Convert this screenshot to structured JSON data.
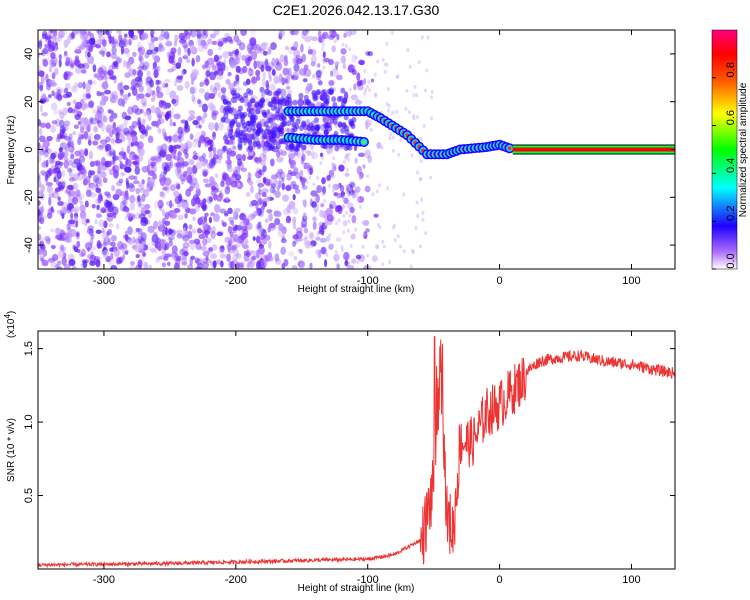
{
  "title": "C2E1.2026.042.13.17.G30",
  "chart_data": [
    {
      "type": "heatmap",
      "xlabel": "Height of straight line (km)",
      "ylabel": "Frequency (Hz)",
      "xlim": [
        -350,
        133
      ],
      "ylim": [
        -50,
        50
      ],
      "xticks": [
        -300,
        -200,
        -100,
        0,
        100
      ],
      "yticks": [
        -40,
        -20,
        0,
        20,
        40
      ],
      "colorbar": {
        "label": "Normalized spectral amplitude",
        "range": [
          0.0,
          1.0
        ],
        "ticks": [
          "0.0",
          "0.2",
          "0.4",
          "0.6",
          "0.8"
        ],
        "colors": [
          "#ffffff",
          "#b070ff",
          "#2000ff",
          "#00ffff",
          "#00ff00",
          "#ffff00",
          "#ff6000",
          "#ff0000",
          "#ff0080"
        ]
      },
      "features": {
        "noise_region_x": [
          -350,
          -140
        ],
        "upper_track": [
          [
            -160,
            16
          ],
          [
            -140,
            16
          ],
          [
            -120,
            16
          ],
          [
            -100,
            16
          ],
          [
            -90,
            13
          ],
          [
            -70,
            6
          ],
          [
            -55,
            -2
          ],
          [
            -40,
            -2
          ],
          [
            -30,
            0
          ],
          [
            -10,
            1
          ],
          [
            0,
            2
          ],
          [
            10,
            0
          ]
        ],
        "lower_track": [
          [
            -160,
            5
          ],
          [
            -140,
            4
          ],
          [
            -120,
            4
          ],
          [
            -100,
            3
          ]
        ],
        "steady_line": [
          [
            10,
            0
          ],
          [
            133,
            0
          ]
        ]
      }
    },
    {
      "type": "line",
      "xlabel": "Height of straight line (km)",
      "ylabel": "SNR (10 * v/v)",
      "yscale_label": "(x10",
      "yscale_exp": "4",
      "xlim": [
        -350,
        133
      ],
      "ylim": [
        0,
        1.62
      ],
      "xticks": [
        -300,
        -200,
        -100,
        0,
        100
      ],
      "yticks": [
        "0.5",
        "1.0",
        "1.5"
      ],
      "series_color": "#ee3333",
      "envelope": [
        [
          -350,
          0.03
        ],
        [
          -250,
          0.04
        ],
        [
          -150,
          0.06
        ],
        [
          -100,
          0.07
        ],
        [
          -80,
          0.1
        ],
        [
          -60,
          0.2
        ],
        [
          -50,
          0.6
        ],
        [
          -45,
          1.6
        ],
        [
          -40,
          0.4
        ],
        [
          -35,
          0.3
        ],
        [
          -30,
          0.9
        ],
        [
          -20,
          0.9
        ],
        [
          -10,
          1.1
        ],
        [
          0,
          1.15
        ],
        [
          10,
          1.25
        ],
        [
          20,
          1.35
        ],
        [
          30,
          1.42
        ],
        [
          40,
          1.44
        ],
        [
          60,
          1.46
        ],
        [
          80,
          1.42
        ],
        [
          100,
          1.4
        ],
        [
          120,
          1.36
        ],
        [
          133,
          1.34
        ]
      ]
    }
  ]
}
